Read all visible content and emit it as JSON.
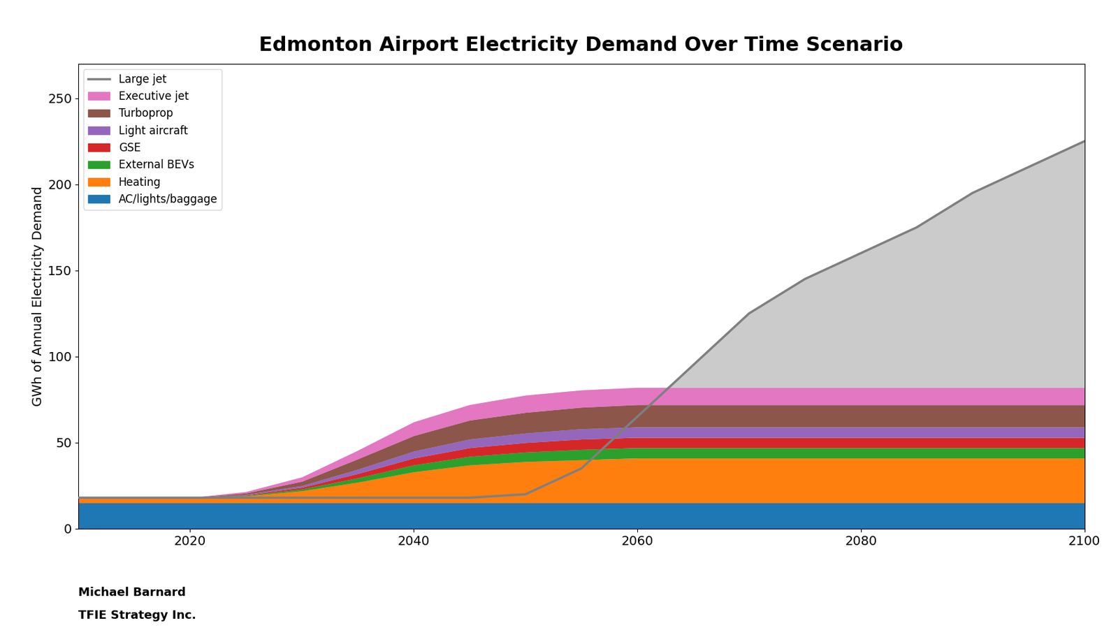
{
  "chart_data": {
    "type": "area",
    "stacked": true,
    "title": "Edmonton Airport Electricity Demand Over Time Scenario",
    "ylabel": "GWh of Annual Electricity Demand",
    "x": [
      2010,
      2015,
      2020,
      2025,
      2030,
      2035,
      2040,
      2045,
      2050,
      2055,
      2060,
      2065,
      2070,
      2075,
      2080,
      2085,
      2090,
      2095,
      2100
    ],
    "series": [
      {
        "name": "AC/lights/baggage",
        "values": [
          15,
          15,
          15,
          15,
          15,
          15,
          15,
          15,
          15,
          15,
          15,
          15,
          15,
          15,
          15,
          15,
          15,
          15,
          15
        ]
      },
      {
        "name": "Heating",
        "values": [
          3,
          3,
          3,
          4,
          7,
          12,
          18,
          22,
          24,
          25,
          26,
          26,
          26,
          26,
          26,
          26,
          26,
          26,
          26
        ]
      },
      {
        "name": "External BEVs",
        "values": [
          0,
          0,
          0,
          0.3,
          1,
          2.5,
          4,
          5,
          5.5,
          6,
          6,
          6,
          6,
          6,
          6,
          6,
          6,
          6,
          6
        ]
      },
      {
        "name": "GSE",
        "values": [
          0,
          0,
          0,
          0.3,
          1,
          2.5,
          4,
          5,
          5.5,
          6,
          6,
          6,
          6,
          6,
          6,
          6,
          6,
          6,
          6
        ]
      },
      {
        "name": "Light aircraft",
        "values": [
          0,
          0,
          0,
          0.3,
          1,
          2.5,
          4,
          5,
          5.5,
          6,
          6,
          6,
          6,
          6,
          6,
          6,
          6,
          6,
          6
        ]
      },
      {
        "name": "Turboprop",
        "values": [
          0,
          0,
          0,
          0.8,
          2.5,
          6,
          9,
          11,
          12,
          12.5,
          13,
          13,
          13,
          13,
          13,
          13,
          13,
          13,
          13
        ]
      },
      {
        "name": "Executive jet",
        "values": [
          0,
          0,
          0,
          0.8,
          2.5,
          5,
          8,
          9,
          10,
          10,
          10,
          10,
          10,
          10,
          10,
          10,
          10,
          10,
          10
        ]
      },
      {
        "name": "Large jet",
        "type": "line",
        "values": [
          18,
          18,
          18,
          18,
          18,
          18,
          18,
          18,
          20,
          35,
          65,
          95,
          125,
          145,
          160,
          175,
          195,
          210,
          225
        ]
      }
    ],
    "xlim": [
      2010,
      2100
    ],
    "xticks": [
      2020,
      2040,
      2060,
      2080,
      2100
    ],
    "ylim": [
      0,
      270
    ],
    "yticks": [
      0,
      50,
      100,
      150,
      200,
      250
    ],
    "grid": false,
    "legend": "upper left",
    "annotations": [
      "Michael Barnard",
      "TFIE Strategy Inc."
    ]
  }
}
